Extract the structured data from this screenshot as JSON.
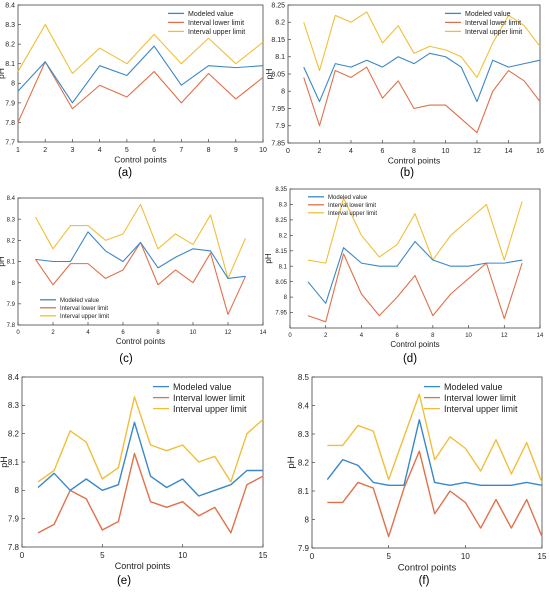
{
  "colors": {
    "modeled": "#3b87c8",
    "lower": "#e0714a",
    "upper": "#f0bf3a",
    "axis": "#444444",
    "label": "#222222"
  },
  "chart_data": [
    {
      "type": "line",
      "panel_label": "(a)",
      "xlabel": "Control points",
      "ylabel": "pH",
      "x": [
        1,
        2,
        3,
        4,
        5,
        6,
        7,
        8,
        9,
        10
      ],
      "xlim": [
        1,
        10
      ],
      "ylim": [
        7.7,
        8.4
      ],
      "xticks": [
        1,
        2,
        3,
        4,
        5,
        6,
        7,
        8,
        9,
        10
      ],
      "yticks": [
        7.7,
        7.8,
        7.9,
        8.0,
        8.1,
        8.2,
        8.3,
        8.4
      ],
      "ytick_labels": [
        "7.7",
        "7.8",
        "7.9",
        "8",
        "8.1",
        "8.2",
        "8.3",
        "8.4"
      ],
      "legend_position": "top-right",
      "series": [
        {
          "name": "Modeled value",
          "values": [
            7.96,
            8.11,
            7.9,
            8.09,
            8.04,
            8.19,
            7.99,
            8.09,
            8.08,
            8.09
          ]
        },
        {
          "name": "Interval lower limit",
          "values": [
            7.8,
            8.11,
            7.87,
            7.99,
            7.93,
            8.06,
            7.9,
            8.05,
            7.92,
            8.03
          ]
        },
        {
          "name": "Interval upper limit",
          "values": [
            8.06,
            8.3,
            8.05,
            8.18,
            8.1,
            8.25,
            8.1,
            8.23,
            8.1,
            8.21
          ]
        }
      ]
    },
    {
      "type": "line",
      "panel_label": "(b)",
      "xlabel": "Control points",
      "ylabel": "pH",
      "x": [
        1,
        2,
        3,
        4,
        5,
        6,
        7,
        8,
        9,
        10,
        11,
        12,
        13,
        14,
        15,
        16
      ],
      "xlim": [
        0,
        16
      ],
      "ylim": [
        7.85,
        8.25
      ],
      "xticks": [
        0,
        2,
        4,
        6,
        8,
        10,
        12,
        14,
        16
      ],
      "yticks": [
        7.85,
        7.9,
        7.95,
        8.0,
        8.05,
        8.1,
        8.15,
        8.2,
        8.25
      ],
      "ytick_labels": [
        "7.85",
        "7.9",
        "7.95",
        "8",
        "8.05",
        "8.1",
        "8.15",
        "8.2",
        "8.25"
      ],
      "legend_position": "top-right",
      "series": [
        {
          "name": "Modeled value",
          "values": [
            8.07,
            7.97,
            8.08,
            8.07,
            8.09,
            8.07,
            8.1,
            8.08,
            8.11,
            8.1,
            8.07,
            7.97,
            8.09,
            8.07,
            8.08,
            8.09
          ]
        },
        {
          "name": "Interval lower limit",
          "values": [
            8.04,
            7.9,
            8.06,
            8.04,
            8.07,
            7.98,
            8.03,
            7.95,
            7.96,
            7.96,
            7.92,
            7.88,
            8.0,
            8.06,
            8.03,
            7.97
          ]
        },
        {
          "name": "Interval upper limit",
          "values": [
            8.2,
            8.06,
            8.22,
            8.2,
            8.23,
            8.14,
            8.19,
            8.11,
            8.13,
            8.12,
            8.1,
            8.04,
            8.14,
            8.22,
            8.19,
            8.13
          ]
        }
      ]
    },
    {
      "type": "line",
      "panel_label": "(c)",
      "xlabel": "Control points",
      "ylabel": "pH",
      "x": [
        1,
        2,
        3,
        4,
        5,
        6,
        7,
        8,
        9,
        10,
        11,
        12,
        13
      ],
      "xlim": [
        0,
        14
      ],
      "ylim": [
        7.8,
        8.4
      ],
      "xticks": [
        0,
        2,
        4,
        6,
        8,
        10,
        12,
        14
      ],
      "yticks": [
        7.8,
        7.9,
        8.0,
        8.1,
        8.2,
        8.3,
        8.4
      ],
      "ytick_labels": [
        "7.8",
        "7.9",
        "8",
        "8.1",
        "8.2",
        "8.3",
        "8.4"
      ],
      "legend_position": "bottom-left",
      "series": [
        {
          "name": "Modeled value",
          "values": [
            8.11,
            8.1,
            8.1,
            8.24,
            8.15,
            8.1,
            8.19,
            8.07,
            8.12,
            8.16,
            8.15,
            8.02,
            8.03
          ]
        },
        {
          "name": "Interval lower limit",
          "values": [
            8.11,
            7.99,
            8.09,
            8.09,
            8.02,
            8.06,
            8.19,
            7.99,
            8.06,
            8.0,
            8.14,
            7.85,
            8.03
          ]
        },
        {
          "name": "Interval upper limit",
          "values": [
            8.31,
            8.16,
            8.27,
            8.27,
            8.2,
            8.23,
            8.37,
            8.16,
            8.23,
            8.18,
            8.32,
            8.02,
            8.21
          ]
        }
      ]
    },
    {
      "type": "line",
      "panel_label": "(d)",
      "xlabel": "Control points",
      "ylabel": "pH",
      "x": [
        1,
        2,
        3,
        4,
        5,
        6,
        7,
        8,
        9,
        10,
        11,
        12,
        13
      ],
      "xlim": [
        0,
        14
      ],
      "ylim": [
        7.9,
        8.35
      ],
      "xticks": [
        0,
        2,
        4,
        6,
        8,
        10,
        12,
        14
      ],
      "yticks": [
        7.95,
        8.0,
        8.05,
        8.1,
        8.15,
        8.2,
        8.25,
        8.3,
        8.35
      ],
      "ytick_labels": [
        "7.95",
        "8",
        "8.05",
        "8.1",
        "8.15",
        "8.2",
        "8.25",
        "8.3",
        "8.35"
      ],
      "legend_position": "top-left",
      "series": [
        {
          "name": "Modeled value",
          "values": [
            8.05,
            7.98,
            8.16,
            8.11,
            8.1,
            8.1,
            8.18,
            8.12,
            8.1,
            8.1,
            8.11,
            8.11,
            8.12
          ]
        },
        {
          "name": "Interval lower limit",
          "values": [
            7.94,
            7.92,
            8.14,
            8.01,
            7.94,
            8.0,
            8.07,
            7.94,
            8.01,
            8.06,
            8.11,
            7.93,
            8.11
          ]
        },
        {
          "name": "Interval upper limit",
          "values": [
            8.12,
            8.11,
            8.32,
            8.2,
            8.13,
            8.17,
            8.27,
            8.12,
            8.2,
            8.25,
            8.3,
            8.12,
            8.31
          ]
        }
      ]
    },
    {
      "type": "line",
      "panel_label": "(e)",
      "xlabel": "Control points",
      "ylabel": "pH",
      "x": [
        1,
        2,
        3,
        4,
        5,
        6,
        7,
        8,
        9,
        10,
        11,
        12,
        13,
        14,
        15
      ],
      "xlim": [
        0,
        15
      ],
      "ylim": [
        7.8,
        8.4
      ],
      "xticks": [
        0,
        5,
        10,
        15
      ],
      "yticks": [
        7.8,
        7.9,
        8.0,
        8.1,
        8.2,
        8.3,
        8.4
      ],
      "ytick_labels": [
        "7.8",
        "7.9",
        "8",
        "8.1",
        "8.2",
        "8.3",
        "8.4"
      ],
      "legend_position": "top-right",
      "series": [
        {
          "name": "Modeled value",
          "values": [
            8.01,
            8.06,
            8.0,
            8.04,
            8.0,
            8.02,
            8.24,
            8.05,
            8.01,
            8.04,
            7.98,
            8.0,
            8.02,
            8.07,
            8.07
          ]
        },
        {
          "name": "Interval lower limit",
          "values": [
            7.85,
            7.88,
            8.0,
            7.97,
            7.86,
            7.89,
            8.13,
            7.96,
            7.94,
            7.96,
            7.91,
            7.94,
            7.85,
            8.02,
            8.05
          ]
        },
        {
          "name": "Interval upper limit",
          "values": [
            8.03,
            8.07,
            8.21,
            8.17,
            8.04,
            8.08,
            8.33,
            8.16,
            8.14,
            8.16,
            8.1,
            8.12,
            8.03,
            8.2,
            8.25
          ]
        }
      ]
    },
    {
      "type": "line",
      "panel_label": "(f)",
      "xlabel": "Control points",
      "ylabel": "pH",
      "x": [
        1,
        2,
        3,
        4,
        5,
        6,
        7,
        8,
        9,
        10,
        11,
        12,
        13,
        14,
        15
      ],
      "xlim": [
        0,
        15
      ],
      "ylim": [
        7.9,
        8.5
      ],
      "xticks": [
        0,
        5,
        10,
        15
      ],
      "yticks": [
        7.9,
        8.0,
        8.1,
        8.2,
        8.3,
        8.4,
        8.5
      ],
      "ytick_labels": [
        "7.9",
        "8",
        "8.1",
        "8.2",
        "8.3",
        "8.4",
        "8.5"
      ],
      "legend_position": "top-right",
      "series": [
        {
          "name": "Modeled value",
          "values": [
            8.14,
            8.21,
            8.19,
            8.13,
            8.12,
            8.12,
            8.35,
            8.13,
            8.12,
            8.13,
            8.12,
            8.12,
            8.12,
            8.13,
            8.12
          ]
        },
        {
          "name": "Interval lower limit",
          "values": [
            8.06,
            8.06,
            8.13,
            8.11,
            7.94,
            8.11,
            8.24,
            8.02,
            8.1,
            8.06,
            7.97,
            8.07,
            7.97,
            8.07,
            7.94
          ]
        },
        {
          "name": "Interval upper limit",
          "values": [
            8.26,
            8.26,
            8.33,
            8.31,
            8.14,
            8.29,
            8.44,
            8.21,
            8.29,
            8.25,
            8.17,
            8.28,
            8.16,
            8.27,
            8.13
          ]
        }
      ]
    }
  ]
}
